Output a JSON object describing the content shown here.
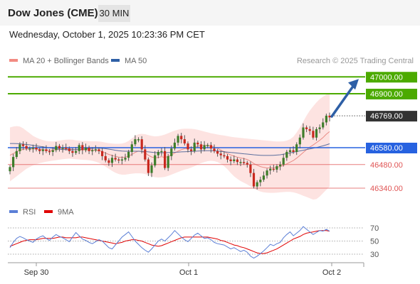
{
  "header": {
    "title": "Dow Jones (CME)",
    "timeframe": "30 MIN"
  },
  "datetime": "Wednesday, October 1, 2025 10:23:36 PM CET",
  "legend": {
    "ma_bb": {
      "label": "MA 20 + Bollinger Bands",
      "color": "#f28b82"
    },
    "ma50": {
      "label": "MA 50",
      "color": "#2e5fa6"
    },
    "credit": "Research © 2025 Trading Central"
  },
  "rsi_legend": {
    "rsi": {
      "label": "RSI",
      "color": "#5b7fd6"
    },
    "ma9": {
      "label": "9MA",
      "color": "#e00000"
    }
  },
  "chart_data": [
    {
      "type": "candlestick",
      "title": "",
      "x_ticks": [
        "Sep 30",
        "Oct 1",
        "Oct 2"
      ],
      "ylim": [
        46250,
        47060
      ],
      "price_levels": [
        {
          "value": 47000,
          "label": "47000.00",
          "kind": "resistance",
          "color": "#4caa00"
        },
        {
          "value": 46900,
          "label": "46900.00",
          "kind": "resistance",
          "color": "#4caa00"
        },
        {
          "value": 46769,
          "label": "46769.00",
          "kind": "last",
          "color": "#333333"
        },
        {
          "value": 46580,
          "label": "46580.00",
          "kind": "pivot",
          "color": "#2762e0"
        },
        {
          "value": 46480,
          "label": "46480.00",
          "kind": "support",
          "color": "#e05555"
        },
        {
          "value": 46340,
          "label": "46340.00",
          "kind": "support",
          "color": "#e05555"
        }
      ],
      "close_series": [
        46465,
        46525,
        46560,
        46600,
        46590,
        46575,
        46575,
        46580,
        46570,
        46560,
        46570,
        46560,
        46555,
        46565,
        46590,
        46575,
        46580,
        46575,
        46560,
        46550,
        46560,
        46595,
        46565,
        46580,
        46560,
        46565,
        46570,
        46560,
        46530,
        46505,
        46490,
        46520,
        46510,
        46505,
        46510,
        46520,
        46555,
        46600,
        46630,
        46630,
        46570,
        46510,
        46430,
        46475,
        46535,
        46555,
        46560,
        46460,
        46530,
        46575,
        46610,
        46650,
        46630,
        46605,
        46570,
        46560,
        46610,
        46600,
        46570,
        46595,
        46595,
        46575,
        46560,
        46545,
        46535,
        46530,
        46510,
        46500,
        46510,
        46495,
        46495,
        46490,
        46480,
        46430,
        46350,
        46375,
        46390,
        46415,
        46445,
        46455,
        46450,
        46470,
        46480,
        46520,
        46555,
        46565,
        46555,
        46600,
        46640,
        46700,
        46690,
        46680,
        46640,
        46690,
        46700,
        46730,
        46770,
        46760
      ],
      "ma20_series": [
        46535,
        46545,
        46555,
        46565,
        46570,
        46572,
        46573,
        46573,
        46572,
        46570,
        46568,
        46566,
        46565,
        46566,
        46568,
        46570,
        46572,
        46573,
        46572,
        46570,
        46568,
        46568,
        46567,
        46568,
        46567,
        46566,
        46565,
        46562,
        46556,
        46548,
        46540,
        46534,
        46528,
        46524,
        46522,
        46524,
        46530,
        46540,
        46552,
        46560,
        46557,
        46550,
        46535,
        46525,
        46520,
        46522,
        46527,
        46522,
        46528,
        46538,
        46548,
        46560,
        46568,
        46574,
        46576,
        46578,
        46584,
        46590,
        46592,
        46594,
        46594,
        46590,
        46584,
        46576,
        46566,
        46556,
        46546,
        46537,
        46530,
        46524,
        46519,
        46515,
        46510,
        46500,
        46486,
        46476,
        46468,
        46463,
        46460,
        46460,
        46461,
        46464,
        46468,
        46475,
        46484,
        46494,
        46504,
        46518,
        46534,
        46552,
        46568,
        46584,
        46596,
        46610,
        46624,
        46640,
        46660,
        46675
      ],
      "bb_upper_series": [
        46700,
        46705,
        46708,
        46705,
        46695,
        46680,
        46665,
        46650,
        46640,
        46632,
        46625,
        46620,
        46618,
        46617,
        46619,
        46622,
        46625,
        46627,
        46628,
        46627,
        46624,
        46622,
        46620,
        46620,
        46619,
        46618,
        46618,
        46617,
        46614,
        46610,
        46607,
        46605,
        46603,
        46603,
        46605,
        46610,
        46620,
        46635,
        46650,
        46660,
        46662,
        46660,
        46655,
        46650,
        46647,
        46648,
        46652,
        46658,
        46666,
        46674,
        46681,
        46687,
        46691,
        46693,
        46693,
        46692,
        46690,
        46686,
        46681,
        46676,
        46671,
        46666,
        46662,
        46658,
        46655,
        46652,
        46648,
        46645,
        46642,
        46640,
        46638,
        46636,
        46634,
        46632,
        46630,
        46628,
        46626,
        46624,
        46622,
        46620,
        46618,
        46617,
        46617,
        46618,
        46622,
        46630,
        46645,
        46670,
        46700,
        46735,
        46770,
        46800,
        46825,
        46848,
        46868,
        46882,
        46895,
        46905
      ],
      "bb_lower_series": [
        46380,
        46395,
        46410,
        46425,
        46440,
        46455,
        46465,
        46475,
        46482,
        46488,
        46493,
        46497,
        46500,
        46503,
        46506,
        46509,
        46512,
        46514,
        46515,
        46514,
        46512,
        46510,
        46508,
        46507,
        46505,
        46502,
        46497,
        46490,
        46480,
        46468,
        46455,
        46442,
        46432,
        46424,
        46420,
        46420,
        46423,
        46426,
        46428,
        46428,
        46427,
        46424,
        46418,
        46410,
        46405,
        46403,
        46404,
        46407,
        46413,
        46420,
        46428,
        46436,
        46443,
        46450,
        46455,
        46462,
        46470,
        46480,
        46488,
        46495,
        46500,
        46502,
        46500,
        46495,
        46485,
        46470,
        46452,
        46430,
        46410,
        46395,
        46382,
        46372,
        46362,
        46350,
        46338,
        46328,
        46320,
        46315,
        46313,
        46312,
        46312,
        46313,
        46315,
        46317,
        46318,
        46318,
        46315,
        46310,
        46303,
        46295,
        46288,
        46280,
        46272,
        46275,
        46290,
        46310,
        46330,
        46350
      ],
      "ma50_series": [
        46605,
        46605,
        46604,
        46603,
        46601,
        46599,
        46597,
        46594,
        46591,
        46588,
        46585,
        46582,
        46579,
        46576,
        46573,
        46571,
        46569,
        46568,
        46567,
        46567,
        46568,
        46569,
        46571,
        46573,
        46575,
        46576,
        46577,
        46577,
        46576,
        46574,
        46571,
        46568,
        46565,
        46562,
        46560,
        46559,
        46559,
        46559,
        46559,
        46559,
        46558,
        46557,
        46555,
        46553,
        46551,
        46550,
        46550,
        46550,
        46551,
        46552,
        46553,
        46554,
        46555,
        46556,
        46557,
        46558,
        46559,
        46560,
        46561,
        46562,
        46562,
        46562,
        46561,
        46560,
        46558,
        46556,
        46554,
        46552,
        46550,
        46548,
        46546,
        46544,
        46542,
        46540,
        46538,
        46536,
        46535,
        46534,
        46534,
        46534,
        46535,
        46536,
        46538,
        46541,
        46545,
        46549,
        46553,
        46557,
        46561,
        46565,
        46569,
        46573,
        46577,
        46581,
        46586,
        46591,
        46597,
        46603
      ],
      "target_arrow": {
        "from": 46765,
        "to": 47000
      }
    },
    {
      "type": "line",
      "title": "RSI",
      "ylim": [
        15,
        80
      ],
      "y_ticks": [
        70,
        50,
        30
      ],
      "rsi_series": [
        40,
        48,
        54,
        57,
        55,
        52,
        50,
        48,
        53,
        56,
        58,
        54,
        51,
        56,
        60,
        57,
        55,
        52,
        49,
        56,
        63,
        58,
        53,
        51,
        48,
        46,
        49,
        52,
        50,
        45,
        40,
        38,
        44,
        50,
        56,
        60,
        64,
        57,
        50,
        45,
        40,
        36,
        33,
        38,
        44,
        50,
        53,
        50,
        55,
        60,
        66,
        61,
        56,
        52,
        49,
        54,
        59,
        62,
        58,
        54,
        55,
        52,
        48,
        46,
        45,
        44,
        41,
        38,
        40,
        37,
        34,
        36,
        33,
        27,
        24,
        27,
        31,
        35,
        40,
        45,
        43,
        46,
        48,
        55,
        60,
        64,
        58,
        62,
        66,
        72,
        68,
        64,
        60,
        63,
        66,
        65,
        68,
        65
      ],
      "ma9_series": [
        42,
        44,
        46,
        48,
        50,
        51,
        52,
        52,
        52,
        53,
        54,
        54,
        54,
        54,
        55,
        56,
        56,
        55,
        55,
        55,
        55,
        56,
        56,
        55,
        54,
        53,
        52,
        51,
        50,
        49,
        48,
        47,
        46,
        47,
        48,
        50,
        51,
        52,
        52,
        51,
        50,
        48,
        46,
        44,
        43,
        42,
        43,
        45,
        47,
        49,
        51,
        53,
        55,
        56,
        56,
        56,
        56,
        56,
        56,
        56,
        56,
        55,
        54,
        53,
        51,
        50,
        48,
        46,
        44,
        43,
        41,
        40,
        38,
        36,
        34,
        32,
        31,
        31,
        32,
        34,
        36,
        38,
        41,
        44,
        47,
        50,
        53,
        55,
        57,
        60,
        62,
        63,
        64,
        65,
        66,
        66,
        66,
        65
      ]
    }
  ]
}
